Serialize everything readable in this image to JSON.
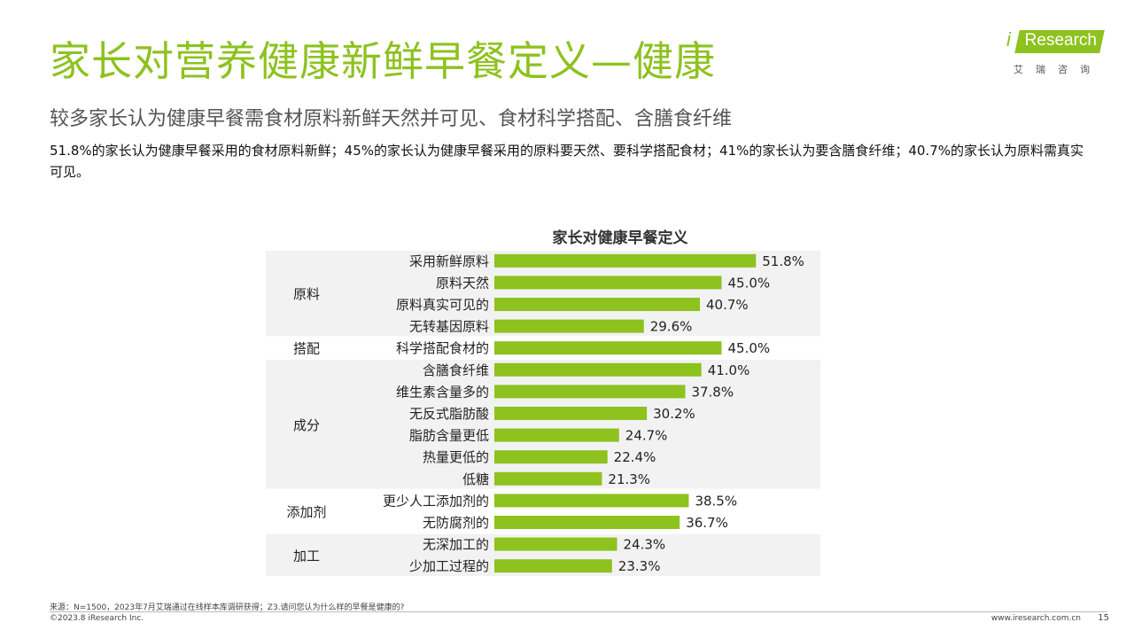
{
  "title": "家长对营养健康新鲜早餐定义—健康",
  "subtitle": "较多家长认为健康早餐需食材原料新鲜天然并可见、食材科学搭配、含膳食纤维",
  "description": "51.8%的家长认为健康早餐采用的食材原料新鲜；45%的家长认为健康早餐采用的原料要天然、要科学搭配食材；41%的家长认为要含膳食纤维；40.7%的家长认为原料需真实可见。",
  "logo": {
    "brand": "Research",
    "prefix": "i",
    "sub": "艾瑞咨询"
  },
  "footer": {
    "source": "来源：N=1500，2023年7月艾瑞通过在线样本库调研获得；Z3.请问您认为什么样的早餐是健康的?",
    "copyright": "©2023.8 iResearch Inc.",
    "url": "www.iresearch.com.cn",
    "page": "15"
  },
  "colors": {
    "accent": "#8dc21f",
    "band": "#f2f2f2"
  },
  "chart_data": {
    "type": "bar",
    "orientation": "horizontal",
    "title": "家长对健康早餐定义",
    "unit": "%",
    "groups": [
      {
        "name": "原料",
        "items": [
          {
            "label": "采用新鲜原料",
            "value": 51.8
          },
          {
            "label": "原料天然",
            "value": 45.0
          },
          {
            "label": "原料真实可见的",
            "value": 40.7
          },
          {
            "label": "无转基因原料",
            "value": 29.6
          }
        ]
      },
      {
        "name": "搭配",
        "items": [
          {
            "label": "科学搭配食材的",
            "value": 45.0
          }
        ]
      },
      {
        "name": "成分",
        "items": [
          {
            "label": "含膳食纤维",
            "value": 41.0
          },
          {
            "label": "维生素含量多的",
            "value": 37.8
          },
          {
            "label": "无反式脂肪酸",
            "value": 30.2
          },
          {
            "label": "脂肪含量更低",
            "value": 24.7
          },
          {
            "label": "热量更低的",
            "value": 22.4
          },
          {
            "label": "低糖",
            "value": 21.3
          }
        ]
      },
      {
        "name": "添加剂",
        "items": [
          {
            "label": "更少人工添加剂的",
            "value": 38.5
          },
          {
            "label": "无防腐剂的",
            "value": 36.7
          }
        ]
      },
      {
        "name": "加工",
        "items": [
          {
            "label": "无深加工的",
            "value": 24.3
          },
          {
            "label": "少加工过程的",
            "value": 23.3
          }
        ]
      }
    ]
  }
}
